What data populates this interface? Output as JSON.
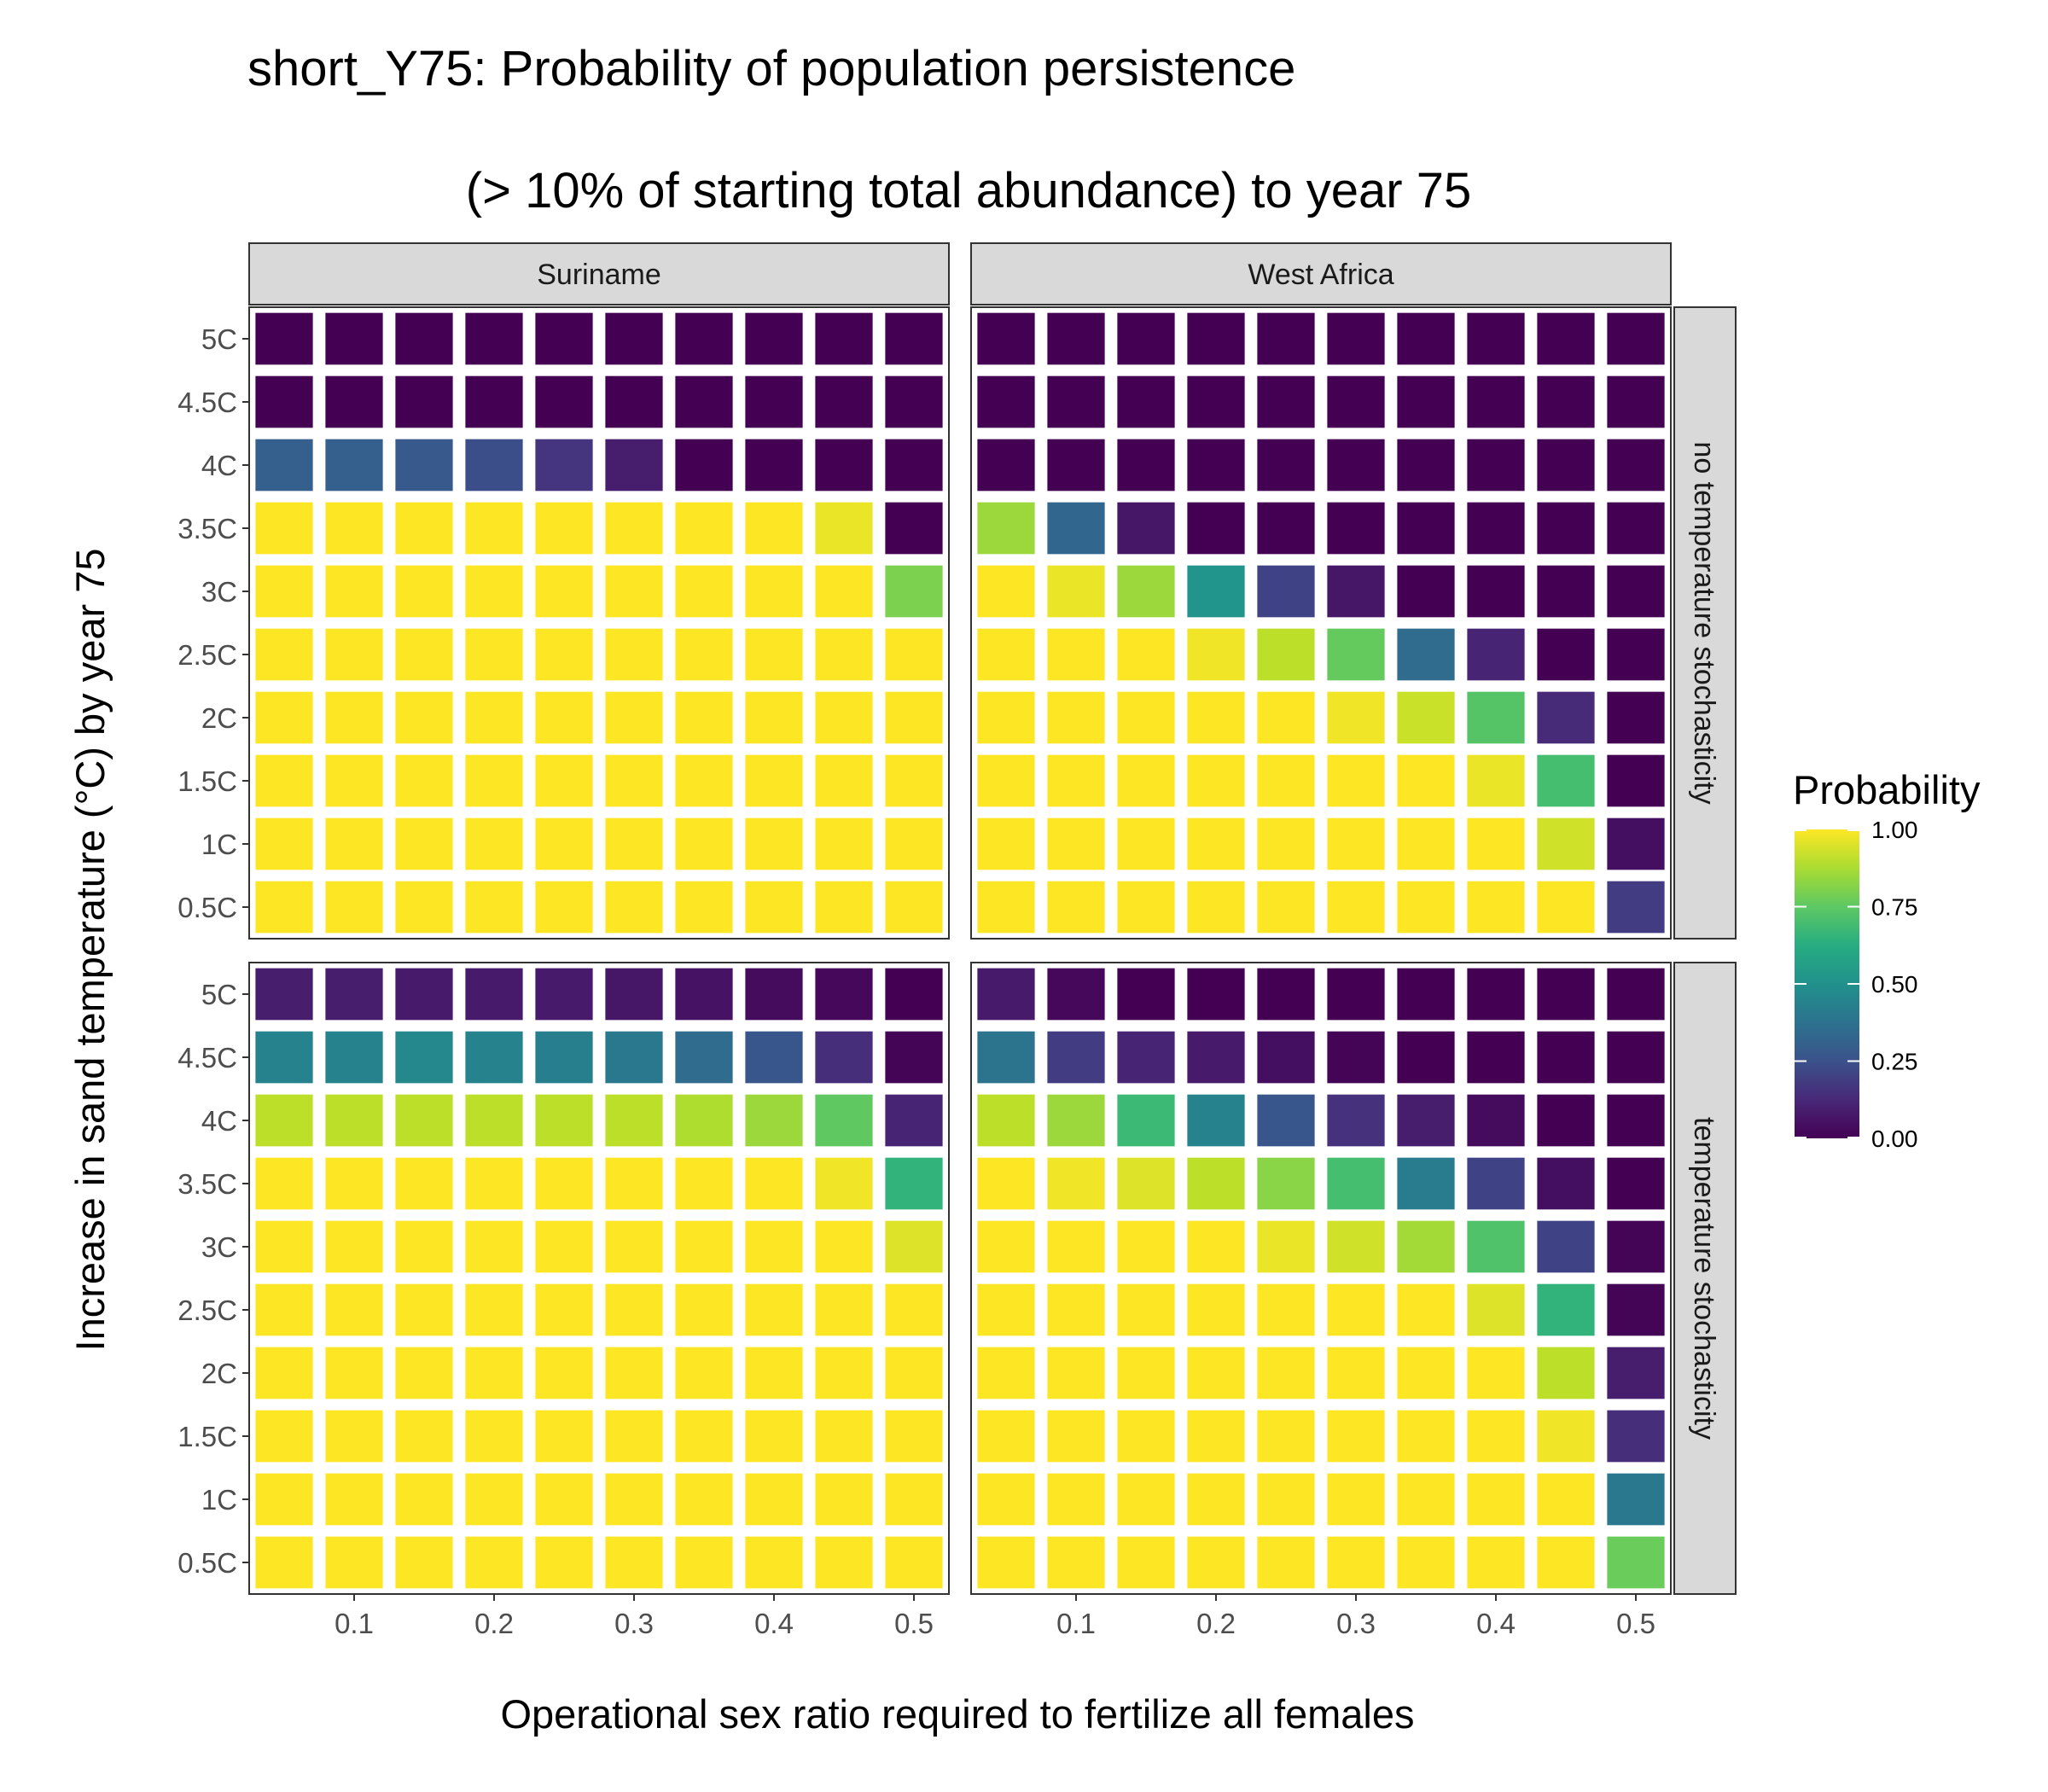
{
  "chart_data": {
    "type": "heatmap",
    "title_line1": "short_Y75: Probability of population persistence",
    "title_line2": "(> 10% of starting total abundance) to year 75",
    "xlabel": "Operational sex ratio required to fertilize all females",
    "ylabel": "Increase in sand temperature (°C) by year 75",
    "x": [
      0.05,
      0.1,
      0.15,
      0.2,
      0.25,
      0.3,
      0.35,
      0.4,
      0.45,
      0.5
    ],
    "xticks": [
      0.1,
      0.2,
      0.3,
      0.4,
      0.5
    ],
    "xtick_labels": [
      "0.1",
      "0.2",
      "0.3",
      "0.4",
      "0.5"
    ],
    "y": [
      "5C",
      "4.5C",
      "4C",
      "3.5C",
      "3C",
      "2.5C",
      "2C",
      "1.5C",
      "1C",
      "0.5C"
    ],
    "columns": [
      "Suriname",
      "West Africa"
    ],
    "rows": [
      "no temperature stochasticity",
      "temperature stochasticity"
    ],
    "legend": {
      "title": "Probability",
      "ticks": [
        1.0,
        0.75,
        0.5,
        0.25,
        0.0
      ],
      "tick_labels": [
        "1.00",
        "0.75",
        "0.50",
        "0.25",
        "0.00"
      ],
      "colormap": "viridis",
      "position": "right"
    },
    "panels": [
      {
        "column": "Suriname",
        "row": "no temperature stochasticity",
        "values": [
          [
            0,
            0,
            0,
            0,
            0,
            0,
            0,
            0,
            0,
            0
          ],
          [
            0,
            0,
            0,
            0,
            0,
            0,
            0,
            0,
            0,
            0
          ],
          [
            0.3,
            0.3,
            0.28,
            0.24,
            0.15,
            0.08,
            0,
            0,
            0,
            0
          ],
          [
            1,
            1,
            1,
            1,
            1,
            1,
            1,
            1,
            0.97,
            0
          ],
          [
            1,
            1,
            1,
            1,
            1,
            1,
            1,
            1,
            1,
            0.8
          ],
          [
            1,
            1,
            1,
            1,
            1,
            1,
            1,
            1,
            1,
            1
          ],
          [
            1,
            1,
            1,
            1,
            1,
            1,
            1,
            1,
            1,
            1
          ],
          [
            1,
            1,
            1,
            1,
            1,
            1,
            1,
            1,
            1,
            1
          ],
          [
            1,
            1,
            1,
            1,
            1,
            1,
            1,
            1,
            1,
            1
          ],
          [
            1,
            1,
            1,
            1,
            1,
            1,
            1,
            1,
            1,
            1
          ]
        ]
      },
      {
        "column": "West Africa",
        "row": "no temperature stochasticity",
        "values": [
          [
            0,
            0,
            0,
            0,
            0,
            0,
            0,
            0,
            0,
            0
          ],
          [
            0,
            0,
            0,
            0,
            0,
            0,
            0,
            0,
            0,
            0
          ],
          [
            0,
            0,
            0,
            0,
            0,
            0,
            0,
            0,
            0,
            0
          ],
          [
            0.85,
            0.33,
            0.06,
            0,
            0,
            0,
            0,
            0,
            0,
            0
          ],
          [
            1,
            0.97,
            0.85,
            0.52,
            0.2,
            0.06,
            0,
            0,
            0,
            0
          ],
          [
            1,
            1,
            1,
            0.98,
            0.9,
            0.76,
            0.35,
            0.1,
            0,
            0
          ],
          [
            1,
            1,
            1,
            1,
            1,
            0.98,
            0.92,
            0.73,
            0.12,
            0
          ],
          [
            1,
            1,
            1,
            1,
            1,
            1,
            1,
            0.97,
            0.7,
            0
          ],
          [
            1,
            1,
            1,
            1,
            1,
            1,
            1,
            1,
            0.93,
            0.04
          ],
          [
            1,
            1,
            1,
            1,
            1,
            1,
            1,
            1,
            1,
            0.18
          ]
        ]
      },
      {
        "column": "Suriname",
        "row": "temperature stochasticity",
        "values": [
          [
            0.08,
            0.08,
            0.07,
            0.07,
            0.07,
            0.06,
            0.05,
            0.03,
            0.02,
            0
          ],
          [
            0.45,
            0.45,
            0.47,
            0.45,
            0.43,
            0.4,
            0.35,
            0.27,
            0.13,
            0.01
          ],
          [
            0.9,
            0.9,
            0.9,
            0.9,
            0.9,
            0.9,
            0.88,
            0.85,
            0.75,
            0.1
          ],
          [
            1,
            1,
            1,
            1,
            1,
            1,
            1,
            1,
            0.98,
            0.65
          ],
          [
            1,
            1,
            1,
            1,
            1,
            1,
            1,
            1,
            1,
            0.95
          ],
          [
            1,
            1,
            1,
            1,
            1,
            1,
            1,
            1,
            1,
            1
          ],
          [
            1,
            1,
            1,
            1,
            1,
            1,
            1,
            1,
            1,
            1
          ],
          [
            1,
            1,
            1,
            1,
            1,
            1,
            1,
            1,
            1,
            1
          ],
          [
            1,
            1,
            1,
            1,
            1,
            1,
            1,
            1,
            1,
            1
          ],
          [
            1,
            1,
            1,
            1,
            1,
            1,
            1,
            1,
            1,
            1
          ]
        ]
      },
      {
        "column": "West Africa",
        "row": "temperature stochasticity",
        "values": [
          [
            0.07,
            0.02,
            0,
            0,
            0,
            0,
            0,
            0,
            0,
            0
          ],
          [
            0.38,
            0.18,
            0.1,
            0.07,
            0.04,
            0.01,
            0,
            0,
            0,
            0
          ],
          [
            0.9,
            0.85,
            0.68,
            0.45,
            0.27,
            0.14,
            0.08,
            0.03,
            0,
            0
          ],
          [
            1,
            0.98,
            0.95,
            0.9,
            0.82,
            0.7,
            0.42,
            0.2,
            0.04,
            0
          ],
          [
            1,
            1,
            1,
            1,
            0.97,
            0.93,
            0.86,
            0.72,
            0.2,
            0.01
          ],
          [
            1,
            1,
            1,
            1,
            1,
            1,
            1,
            0.95,
            0.65,
            0.01
          ],
          [
            1,
            1,
            1,
            1,
            1,
            1,
            1,
            1,
            0.9,
            0.08
          ],
          [
            1,
            1,
            1,
            1,
            1,
            1,
            1,
            1,
            0.98,
            0.13
          ],
          [
            1,
            1,
            1,
            1,
            1,
            1,
            1,
            1,
            1,
            0.4
          ],
          [
            1,
            1,
            1,
            1,
            1,
            1,
            1,
            1,
            1,
            0.77
          ]
        ]
      }
    ]
  }
}
